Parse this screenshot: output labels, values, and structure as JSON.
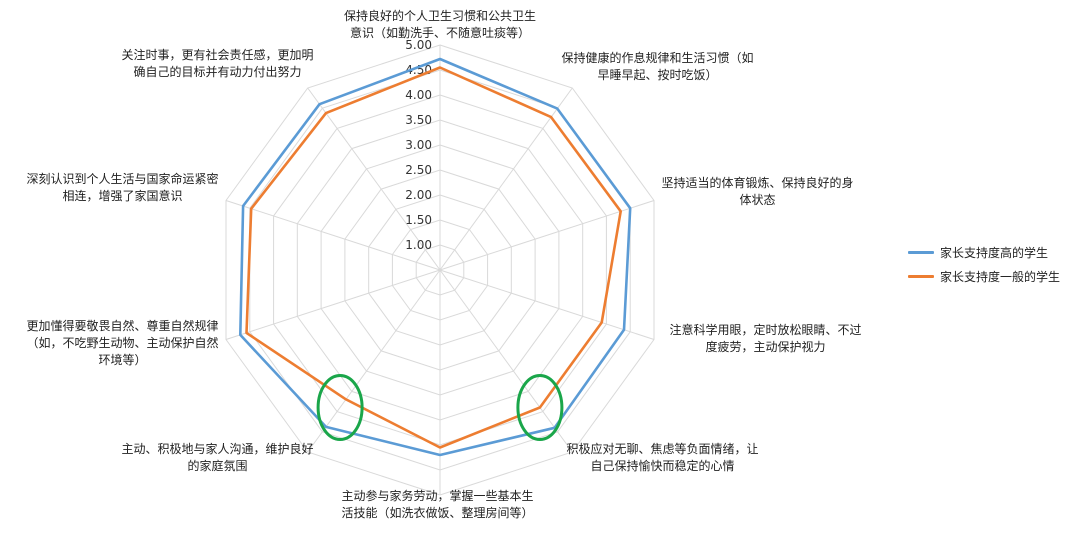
{
  "chart_data": {
    "type": "radar",
    "title": "",
    "axes": [
      "保持良好的个人卫生习惯和公共卫生意识（如勤洗手、不随意吐痰等）",
      "保持健康的作息规律和生活习惯（如早睡早起、按时吃饭）",
      "坚持适当的体育锻炼、保持良好的身体状态",
      "注意科学用眼，定时放松眼睛、不过度疲劳，主动保护视力",
      "积极应对无聊、焦虑等负面情绪，让自己保持愉快而稳定的心情",
      "主动参与家务劳动，掌握一些基本生活技能（如洗衣做饭、整理房间等）",
      "主动、积极地与家人沟通，维护良好的家庭氛围",
      "更加懂得要敬畏自然、尊重自然规律（如，不吃野生动物、主动保护自然环境等）",
      "深刻认识到个人生活与国家命运紧密相连，增强了家国意识",
      "关注时事，更有社会责任感，更加明确自己的目标并有动力付出努力"
    ],
    "axis_label_lines": [
      [
        "保持良好的个人卫生习惯和公共卫生",
        "意识（如勤洗手、不随意吐痰等）"
      ],
      [
        "保持健康的作息规律和生活习惯（如",
        "早睡早起、按时吃饭）"
      ],
      [
        "坚持适当的体育锻炼、保持良好的身",
        "体状态"
      ],
      [
        "注意科学用眼，定时放松眼睛、不过",
        "度疲劳，主动保护视力"
      ],
      [
        "积极应对无聊、焦虑等负面情绪，让",
        "自己保持愉快而稳定的心情"
      ],
      [
        "主动参与家务劳动，掌握一些基本生",
        "活技能（如洗衣做饭、整理房间等）"
      ],
      [
        "主动、积极地与家人沟通，维护良好",
        "的家庭氛围"
      ],
      [
        "更加懂得要敬畏自然、尊重自然规律",
        "（如，不吃野生动物、主动保护自然",
        "环境等）"
      ],
      [
        "深刻认识到个人生活与国家命运紧密",
        "相连，增强了家国意识"
      ],
      [
        "关注时事，更有社会责任感，更加明",
        "确自己的目标并有动力付出努力"
      ]
    ],
    "tick_labels": [
      "1.00",
      "1.50",
      "2.00",
      "2.50",
      "3.00",
      "3.50",
      "4.00",
      "4.50",
      "5.00"
    ],
    "range": [
      0.5,
      5.0
    ],
    "grid": true,
    "legend_position": "right",
    "series": [
      {
        "name": "家长支持度高的学生",
        "color": "#5B9BD5",
        "values": [
          4.72,
          4.49,
          4.5,
          4.37,
          4.4,
          4.2,
          4.38,
          4.7,
          4.64,
          4.6
        ]
      },
      {
        "name": "家长支持度一般的学生",
        "color": "#ED7D31",
        "values": [
          4.55,
          4.28,
          4.3,
          3.9,
          3.9,
          4.05,
          3.7,
          4.57,
          4.47,
          4.38
        ]
      }
    ],
    "annotations": [
      {
        "type": "circle",
        "color": "#1AA64A",
        "axis": 4,
        "level": 3.9
      },
      {
        "type": "circle",
        "color": "#1AA64A",
        "axis": 6,
        "level": 3.9
      }
    ]
  }
}
